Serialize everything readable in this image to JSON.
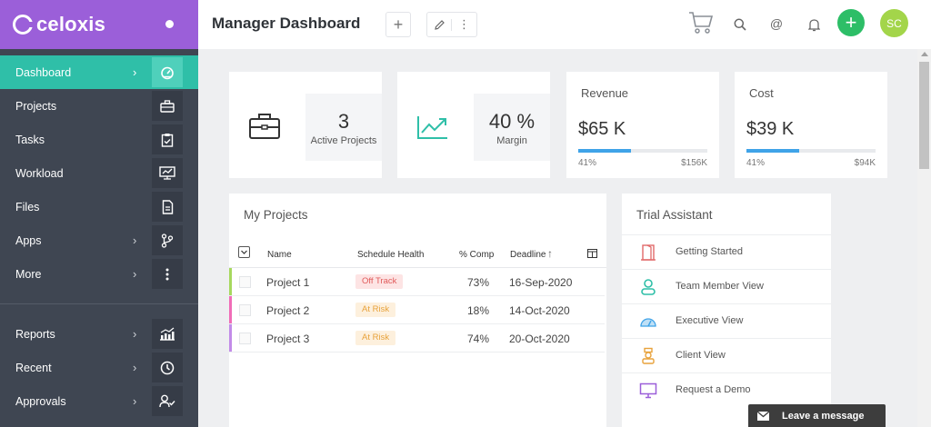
{
  "brand": {
    "name": "celoxis"
  },
  "sidebar": {
    "items": [
      {
        "label": "Dashboard",
        "icon": "dashboard-gauge-icon",
        "chevron": "›",
        "active": true
      },
      {
        "label": "Projects",
        "icon": "briefcase-icon",
        "chevron": ""
      },
      {
        "label": "Tasks",
        "icon": "clipboard-check-icon",
        "chevron": ""
      },
      {
        "label": "Workload",
        "icon": "workload-chart-icon",
        "chevron": ""
      },
      {
        "label": "Files",
        "icon": "file-icon",
        "chevron": ""
      },
      {
        "label": "Apps",
        "icon": "branch-icon",
        "chevron": "›"
      },
      {
        "label": "More",
        "icon": "more-vertical-icon",
        "chevron": "›"
      }
    ],
    "bottom_items": [
      {
        "label": "Reports",
        "icon": "reports-chart-icon",
        "chevron": "›"
      },
      {
        "label": "Recent",
        "icon": "clock-icon",
        "chevron": "›"
      },
      {
        "label": "Approvals",
        "icon": "user-check-icon",
        "chevron": "›"
      }
    ]
  },
  "header": {
    "title": "Manager Dashboard",
    "add_label": "+",
    "more_label": "⋮"
  },
  "kpis": {
    "projects": {
      "value": "3",
      "label": "Active Projects"
    },
    "margin": {
      "value": "40 %",
      "label": "Margin"
    },
    "revenue": {
      "title": "Revenue",
      "value": "$65 K",
      "percent_label": "41%",
      "max_label": "$156K",
      "fill_fraction": 0.41
    },
    "cost": {
      "title": "Cost",
      "value": "$39 K",
      "percent_label": "41%",
      "max_label": "$94K",
      "fill_fraction": 0.41
    }
  },
  "projects_table": {
    "title": "My Projects",
    "columns": {
      "name": "Name",
      "health": "Schedule Health",
      "comp": "% Comp",
      "deadline": "Deadline"
    },
    "rows": [
      {
        "name": "Project 1",
        "health": "Off Track",
        "comp": "73%",
        "deadline": "16-Sep-2020",
        "stripe": "#a6d85e",
        "badge_bg": "#fde4e4",
        "badge_fg": "#e05a5a"
      },
      {
        "name": "Project 2",
        "health": "At Risk",
        "comp": "18%",
        "deadline": "14-Oct-2020",
        "stripe": "#f06cb8",
        "badge_bg": "#fdf0dd",
        "badge_fg": "#e8a23b"
      },
      {
        "name": "Project 3",
        "health": "At Risk",
        "comp": "74%",
        "deadline": "20-Oct-2020",
        "stripe": "#c28be8",
        "badge_bg": "#fdf0dd",
        "badge_fg": "#e8a23b"
      }
    ]
  },
  "trial_assistant": {
    "title": "Trial Assistant",
    "items": [
      {
        "label": "Getting Started",
        "icon": "door-icon",
        "color": "#e06a6a"
      },
      {
        "label": "Team Member View",
        "icon": "person-icon",
        "color": "#2fbfa8"
      },
      {
        "label": "Executive View",
        "icon": "gauge-icon",
        "color": "#3fa3e8"
      },
      {
        "label": "Client View",
        "icon": "client-icon",
        "color": "#e8a23b"
      },
      {
        "label": "Request a Demo",
        "icon": "monitor-icon",
        "color": "#9b5fd9"
      }
    ]
  },
  "avatar": {
    "initials": "SC"
  },
  "chat": {
    "label": "Leave a message"
  },
  "colors": {
    "brand": "#9b5fd9",
    "accent": "#2fbfa8",
    "sidebar": "#3f4652",
    "add": "#2dbe67",
    "avatar": "#a3d54a",
    "progress": "#3fa3e8"
  }
}
